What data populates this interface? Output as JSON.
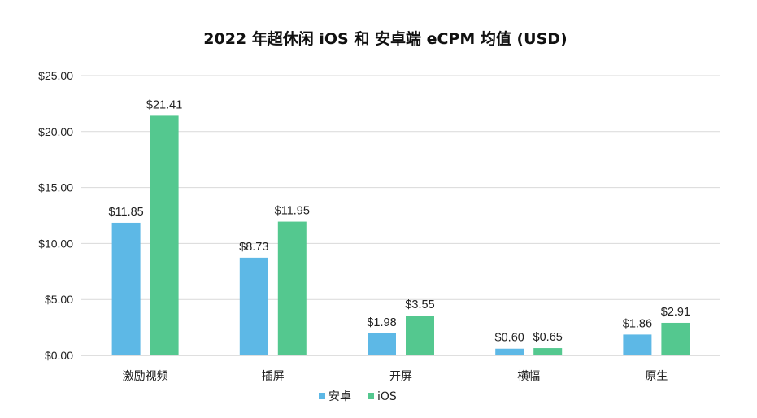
{
  "chart_data": {
    "type": "bar",
    "title": "2022 年超休闲 iOS 和 安卓端 eCPM 均值 (USD)",
    "xlabel": "",
    "ylabel": "",
    "categories": [
      "激励视频",
      "插屏",
      "开屏",
      "横幅",
      "原生"
    ],
    "series": [
      {
        "name": "安卓",
        "color": "#5db8e6",
        "values": [
          11.85,
          8.73,
          1.98,
          0.6,
          1.86
        ],
        "labels": [
          "$11.85",
          "$8.73",
          "$1.98",
          "$0.60",
          "$1.86"
        ]
      },
      {
        "name": "iOS",
        "color": "#54c88f",
        "values": [
          21.41,
          11.95,
          3.55,
          0.65,
          2.91
        ],
        "labels": [
          "$21.41",
          "$11.95",
          "$3.55",
          "$0.65",
          "$2.91"
        ]
      }
    ],
    "ylim": [
      0,
      25
    ],
    "yticks": [
      0,
      5,
      10,
      15,
      20,
      25
    ],
    "ytick_labels": [
      "$0.00",
      "$5.00",
      "$10.00",
      "$15.00",
      "$20.00",
      "$25.00"
    ],
    "grid": true,
    "legend_position": "bottom"
  }
}
